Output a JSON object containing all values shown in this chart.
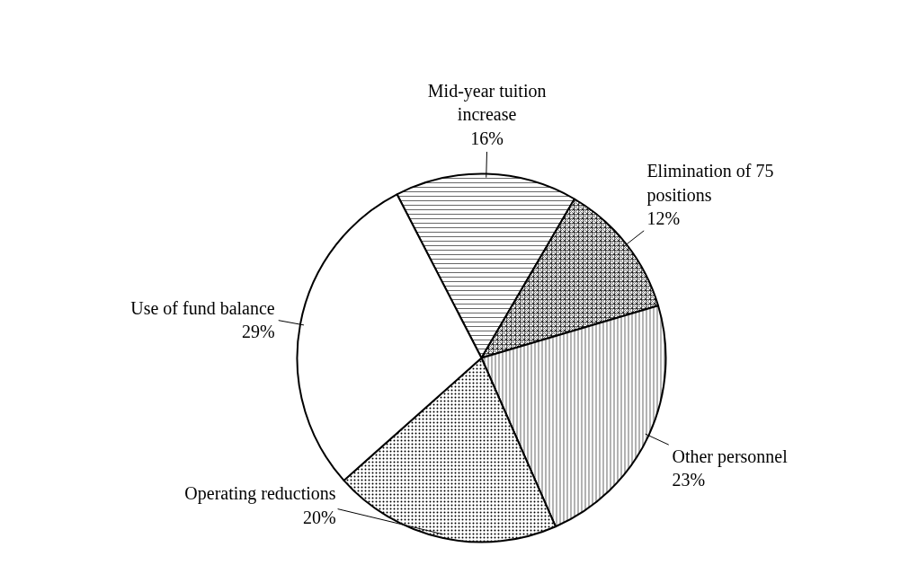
{
  "chart_data": {
    "type": "pie",
    "categories": [
      "Mid-year tuition increase",
      "Elimination of 75 positions",
      "Other personnel",
      "Operating reductions",
      "Use of fund balance"
    ],
    "values": [
      16,
      12,
      23,
      20,
      29
    ],
    "value_labels": [
      "16%",
      "12%",
      "23%",
      "20%",
      "29%"
    ],
    "colors": [
      "#ffffff",
      "#ffffff",
      "#ffffff",
      "#ffffff",
      "#ffffff"
    ]
  }
}
